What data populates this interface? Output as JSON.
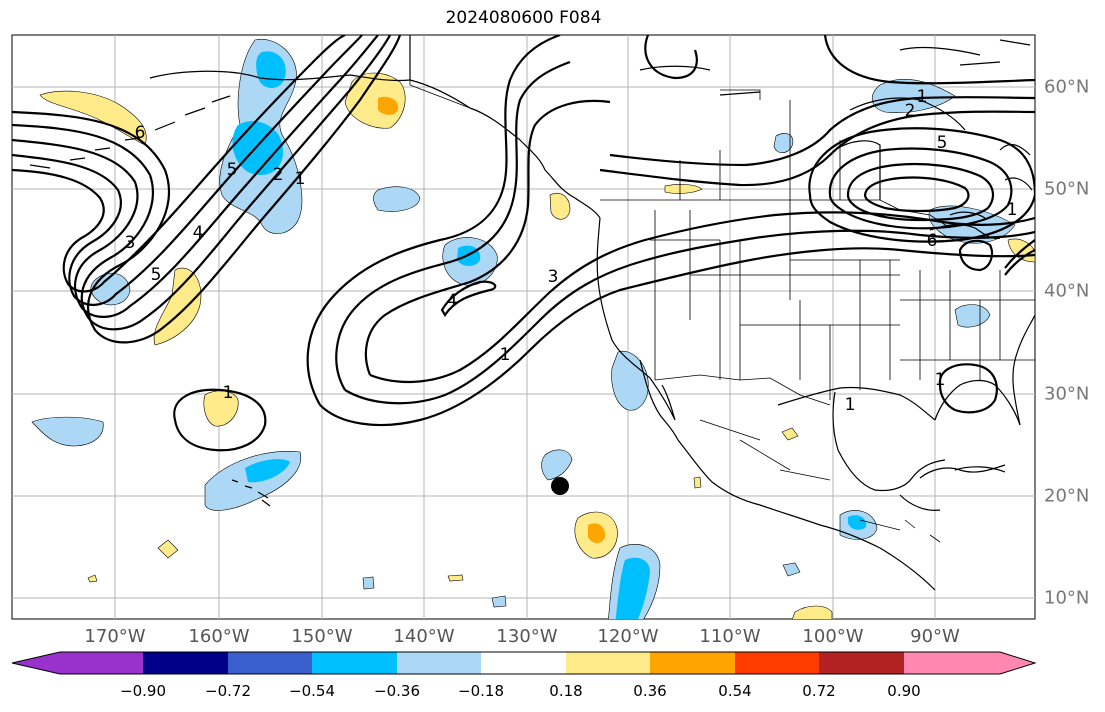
{
  "title": "2024080600 F084",
  "map": {
    "lon_labels": [
      "170°W",
      "160°W",
      "150°W",
      "140°W",
      "130°W",
      "120°W",
      "110°W",
      "100°W",
      "90°W"
    ],
    "lat_labels": [
      "60°N",
      "50°N",
      "40°N",
      "30°N",
      "20°N",
      "10°N"
    ],
    "contour_labels": [
      "1",
      "2",
      "3",
      "4",
      "5",
      "6"
    ],
    "marker": "storm-position-dot"
  },
  "colorbar": {
    "ticks": [
      "−0.90",
      "−0.72",
      "−0.54",
      "−0.36",
      "−0.18",
      "0.18",
      "0.36",
      "0.54",
      "0.72",
      "0.90"
    ],
    "colors": [
      "#9932cc",
      "#00008b",
      "#3a5fcd",
      "#00bfff",
      "#add8f5",
      "#ffffff",
      "#ffeb8a",
      "#ffa500",
      "#ff3b00",
      "#b22222",
      "#ff87b0"
    ]
  }
}
